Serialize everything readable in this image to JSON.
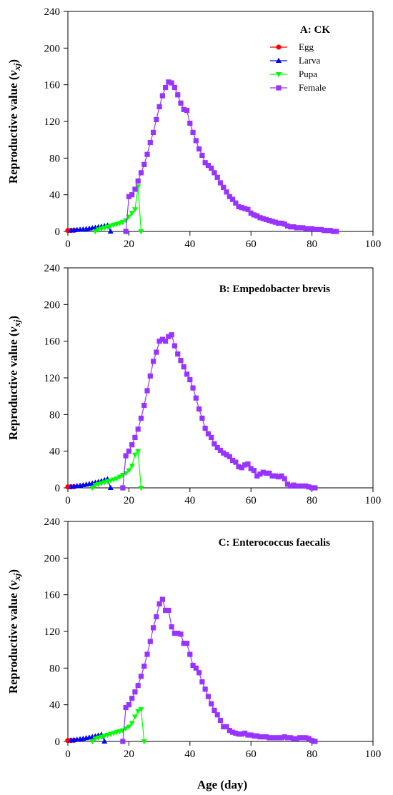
{
  "figure": {
    "ylabel_main": "Reproductive value (",
    "ylabel_var": "v",
    "ylabel_sub": "xj",
    "ylabel_close": ")",
    "xlabel": "Age (day)"
  },
  "chart_data": [
    {
      "type": "line",
      "title": "A: CK",
      "xlim": [
        0,
        100
      ],
      "ylim": [
        0,
        240
      ],
      "xticks": [
        0,
        20,
        40,
        60,
        80,
        100
      ],
      "yticks": [
        0,
        40,
        80,
        120,
        160,
        200,
        240
      ],
      "legend": "top-right",
      "series": [
        {
          "name": "Egg",
          "color": "#ff0000",
          "marker": "circle",
          "x": [
            0,
            1,
            2
          ],
          "y": [
            1.0,
            1.1,
            1.2
          ]
        },
        {
          "name": "Larva",
          "color": "#0000ff",
          "marker": "triangle-up",
          "x": [
            1,
            2,
            3,
            4,
            5,
            6,
            7,
            8,
            9,
            10,
            11,
            12,
            13,
            14
          ],
          "y": [
            1.2,
            1.5,
            1.8,
            2.1,
            2.4,
            2.8,
            3.2,
            3.7,
            4.2,
            4.8,
            5.4,
            6.0,
            6.6,
            0
          ]
        },
        {
          "name": "Pupa",
          "color": "#00ff00",
          "marker": "triangle-down",
          "x": [
            9,
            10,
            11,
            12,
            13,
            14,
            15,
            16,
            17,
            18,
            19,
            20,
            21,
            22,
            23,
            24
          ],
          "y": [
            0,
            2,
            3,
            4,
            5,
            6,
            7,
            8,
            9,
            10,
            12,
            16,
            20,
            24,
            49,
            0
          ]
        },
        {
          "name": "Female",
          "color": "#9933ff",
          "marker": "square",
          "x": [
            19,
            20,
            21,
            22,
            23,
            24,
            25,
            26,
            27,
            28,
            29,
            30,
            31,
            32,
            33,
            34,
            35,
            36,
            37,
            38,
            39,
            40,
            41,
            42,
            43,
            44,
            45,
            46,
            47,
            48,
            49,
            50,
            51,
            52,
            53,
            54,
            55,
            56,
            57,
            58,
            59,
            60,
            61,
            62,
            63,
            64,
            65,
            66,
            67,
            68,
            69,
            70,
            71,
            72,
            73,
            74,
            75,
            76,
            77,
            78,
            79,
            80,
            81,
            82,
            83,
            84,
            85,
            86,
            87,
            88
          ],
          "y": [
            0,
            38,
            40,
            46,
            55,
            64,
            73,
            84,
            97,
            108,
            122,
            136,
            148,
            157,
            163,
            162,
            157,
            149,
            140,
            133,
            132,
            118,
            108,
            99,
            90,
            83,
            75,
            72,
            69,
            64,
            59,
            53,
            48,
            43,
            38,
            35,
            31,
            27,
            26,
            25,
            24,
            20,
            18,
            17,
            15,
            14,
            13,
            12,
            11,
            10,
            9,
            9,
            8,
            6,
            5,
            5,
            4,
            4,
            4,
            3,
            3,
            3,
            2,
            2,
            2,
            1,
            1,
            1,
            0,
            0
          ]
        }
      ]
    },
    {
      "type": "line",
      "title": "B: Empedobacter brevis",
      "xlim": [
        0,
        100
      ],
      "ylim": [
        0,
        240
      ],
      "xticks": [
        0,
        20,
        40,
        60,
        80,
        100
      ],
      "yticks": [
        0,
        40,
        80,
        120,
        160,
        200,
        240
      ],
      "series": [
        {
          "name": "Egg",
          "color": "#ff0000",
          "marker": "circle",
          "x": [
            0,
            1,
            2
          ],
          "y": [
            1.0,
            1.1,
            1.2
          ]
        },
        {
          "name": "Larva",
          "color": "#0000ff",
          "marker": "triangle-up",
          "x": [
            1,
            2,
            3,
            4,
            5,
            6,
            7,
            8,
            9,
            10,
            11,
            12,
            13,
            14
          ],
          "y": [
            1.3,
            1.7,
            2.1,
            2.6,
            3.1,
            3.7,
            4.3,
            5.0,
            5.8,
            6.6,
            7.5,
            8.5,
            9.6,
            0
          ]
        },
        {
          "name": "Pupa",
          "color": "#00ff00",
          "marker": "triangle-down",
          "x": [
            8,
            9,
            10,
            11,
            12,
            13,
            14,
            15,
            16,
            17,
            18,
            19,
            20,
            21,
            22,
            23,
            24
          ],
          "y": [
            0,
            3,
            4,
            5,
            6,
            7,
            8,
            9,
            10,
            12,
            14,
            16,
            19,
            24,
            36,
            40,
            0
          ]
        },
        {
          "name": "Female",
          "color": "#9933ff",
          "marker": "square",
          "x": [
            18,
            19,
            20,
            21,
            22,
            23,
            24,
            25,
            26,
            27,
            28,
            29,
            30,
            31,
            32,
            33,
            34,
            35,
            36,
            37,
            38,
            39,
            40,
            41,
            42,
            43,
            44,
            45,
            46,
            47,
            48,
            49,
            50,
            51,
            52,
            53,
            54,
            55,
            56,
            57,
            58,
            59,
            60,
            61,
            62,
            63,
            64,
            65,
            66,
            67,
            68,
            69,
            70,
            71,
            72,
            73,
            74,
            75,
            76,
            77,
            78,
            79,
            80,
            81
          ],
          "y": [
            0,
            35,
            40,
            47,
            55,
            64,
            76,
            90,
            106,
            122,
            138,
            148,
            160,
            162,
            160,
            165,
            167,
            155,
            146,
            139,
            132,
            124,
            118,
            109,
            98,
            86,
            76,
            65,
            59,
            55,
            48,
            44,
            41,
            38,
            36,
            34,
            30,
            28,
            23,
            22,
            25,
            26,
            21,
            19,
            13,
            15,
            17,
            16,
            16,
            13,
            13,
            12,
            13,
            10,
            4,
            2,
            3,
            2,
            2,
            2,
            2,
            1,
            0,
            0
          ]
        }
      ]
    },
    {
      "type": "line",
      "title": "C: Enterococcus  faecalis",
      "xlim": [
        0,
        100
      ],
      "ylim": [
        0,
        240
      ],
      "xticks": [
        0,
        20,
        40,
        60,
        80,
        100
      ],
      "yticks": [
        0,
        40,
        80,
        120,
        160,
        200,
        240
      ],
      "series": [
        {
          "name": "Egg",
          "color": "#ff0000",
          "marker": "circle",
          "x": [
            0,
            1,
            2
          ],
          "y": [
            1.0,
            1.1,
            1.2
          ]
        },
        {
          "name": "Larva",
          "color": "#0000ff",
          "marker": "triangle-up",
          "x": [
            1,
            2,
            3,
            4,
            5,
            6,
            7,
            8,
            9,
            10,
            11,
            12
          ],
          "y": [
            1.3,
            1.7,
            2.1,
            2.6,
            3.1,
            3.7,
            4.3,
            5.0,
            5.8,
            6.6,
            7.5,
            0
          ]
        },
        {
          "name": "Pupa",
          "color": "#00ff00",
          "marker": "triangle-down",
          "x": [
            8,
            9,
            10,
            11,
            12,
            13,
            14,
            15,
            16,
            17,
            18,
            19,
            20,
            21,
            22,
            23,
            24,
            25
          ],
          "y": [
            0,
            3,
            4,
            5,
            6,
            7,
            8,
            9,
            10,
            11,
            12,
            14,
            16,
            20,
            27,
            33,
            35,
            0
          ]
        },
        {
          "name": "Female",
          "color": "#9933ff",
          "marker": "square",
          "x": [
            18,
            19,
            20,
            21,
            22,
            23,
            24,
            25,
            26,
            27,
            28,
            29,
            30,
            31,
            32,
            33,
            34,
            35,
            36,
            37,
            38,
            39,
            40,
            41,
            42,
            43,
            44,
            45,
            46,
            47,
            48,
            49,
            50,
            51,
            52,
            53,
            54,
            55,
            56,
            57,
            58,
            59,
            60,
            61,
            62,
            63,
            64,
            65,
            66,
            67,
            68,
            69,
            70,
            71,
            72,
            73,
            74,
            75,
            76,
            77,
            78,
            79,
            80,
            81
          ],
          "y": [
            0,
            37,
            40,
            47,
            54,
            61,
            71,
            82,
            95,
            109,
            124,
            136,
            150,
            155,
            143,
            143,
            125,
            118,
            118,
            117,
            107,
            107,
            95,
            83,
            80,
            75,
            65,
            57,
            49,
            41,
            34,
            29,
            23,
            16,
            16,
            12,
            10,
            9,
            8,
            8,
            9,
            7,
            7,
            6,
            6,
            5,
            5,
            5,
            4,
            4,
            4,
            4,
            4,
            5,
            4,
            4,
            3,
            3,
            4,
            4,
            4,
            3,
            1,
            0
          ]
        }
      ]
    }
  ]
}
